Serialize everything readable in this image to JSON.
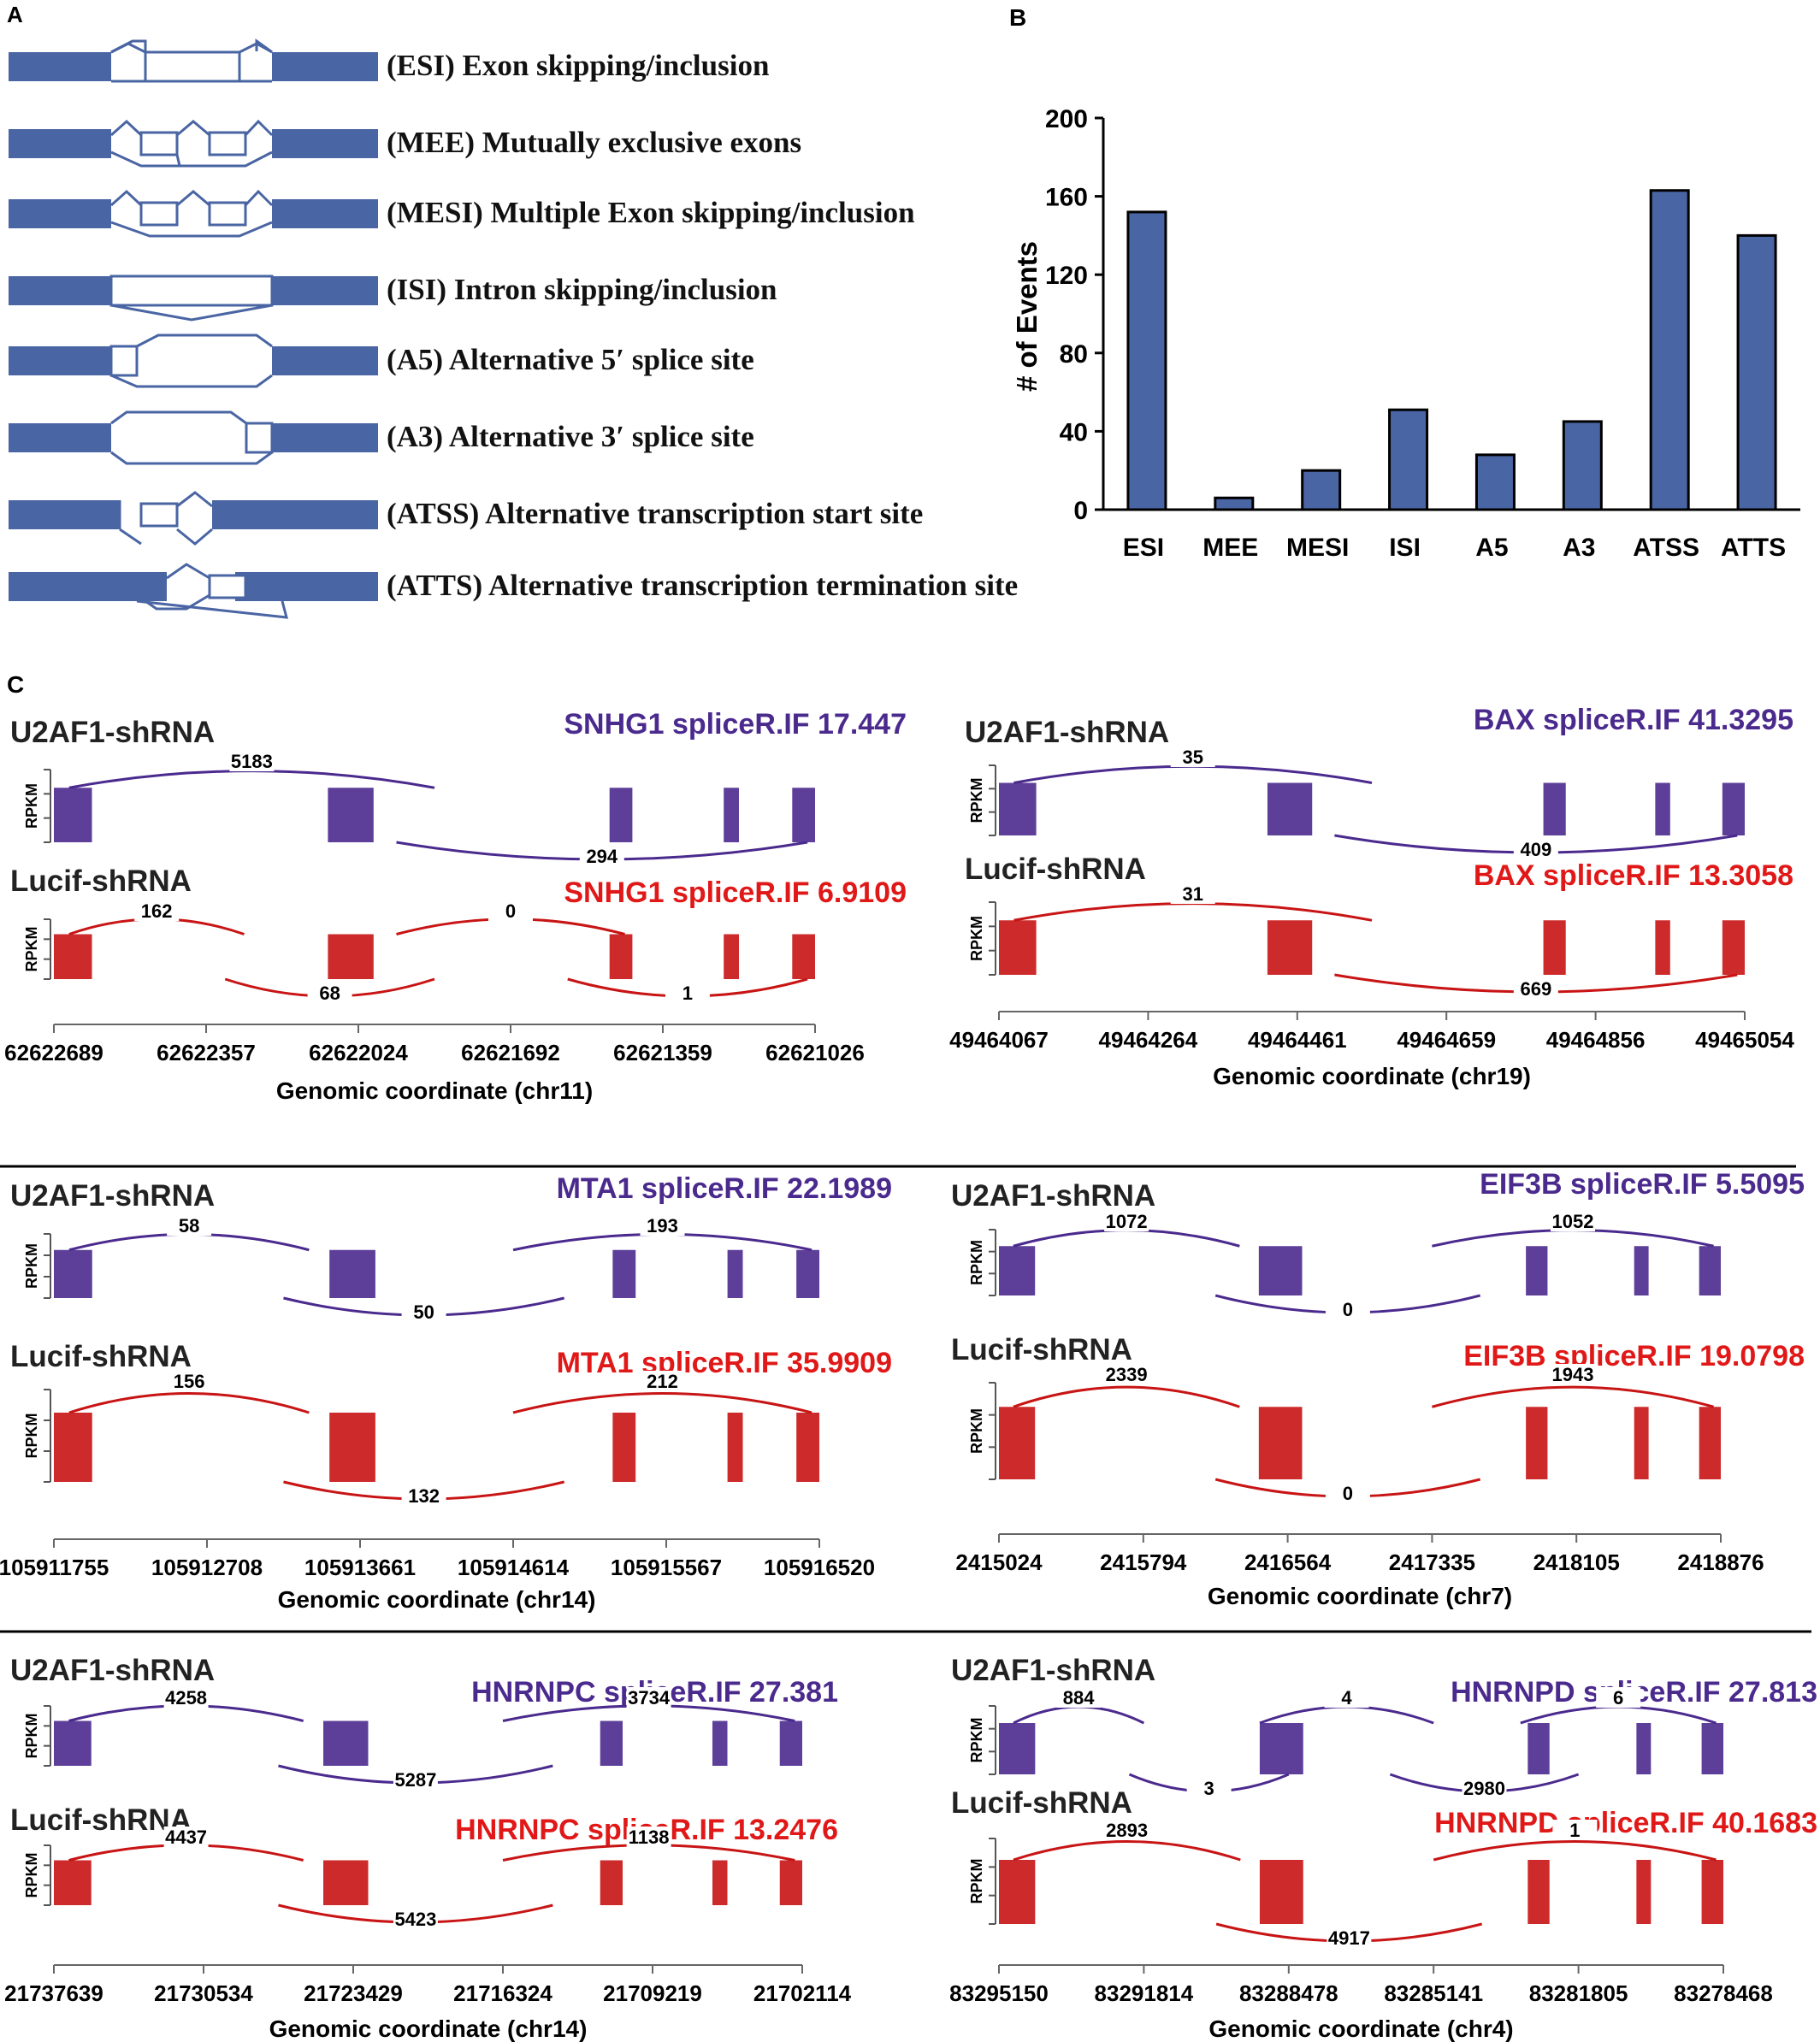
{
  "panel_labels": {
    "a": "A",
    "b": "B",
    "c": "C"
  },
  "colors": {
    "exon": "#4a65a3",
    "purple": "#4b2a8e",
    "red": "#e01818",
    "darkred": "#c81414",
    "bar": "#4a65a3"
  },
  "panel_a": {
    "events": [
      {
        "label": "(ESI) Exon skipping/inclusion",
        "icon": "esi-diagram-icon"
      },
      {
        "label": "(MEE) Mutually exclusive exons",
        "icon": "mee-diagram-icon"
      },
      {
        "label": "(MESI) Multiple Exon skipping/inclusion",
        "icon": "mesi-diagram-icon"
      },
      {
        "label": "(ISI) Intron skipping/inclusion",
        "icon": "isi-diagram-icon"
      },
      {
        "label": "(A5) Alternative 5′ splice site",
        "icon": "a5-diagram-icon"
      },
      {
        "label": "(A3) Alternative 3′ splice site",
        "icon": "a3-diagram-icon"
      },
      {
        "label": "(ATSS) Alternative transcription start site",
        "icon": "atss-diagram-icon"
      },
      {
        "label": "(ATTS) Alternative transcription termination site",
        "icon": "atts-diagram-icon"
      }
    ]
  },
  "chart_data": {
    "type": "bar",
    "categories": [
      "ESI",
      "MEE",
      "MESI",
      "ISI",
      "A5",
      "A3",
      "ATSS",
      "ATTS"
    ],
    "values": [
      152,
      6,
      20,
      51,
      28,
      45,
      163,
      140
    ],
    "ylabel": "# of Events",
    "xlabel": "",
    "title": "",
    "ylim": [
      0,
      200
    ],
    "yticks": [
      0,
      40,
      80,
      120,
      160,
      200
    ],
    "grid": false,
    "color": "#4a65a3"
  },
  "panel_c": {
    "rpkm_label": "RPKM",
    "genes": [
      {
        "gene": "SNHG1",
        "top": {
          "sample": "U2AF1-shRNA",
          "title": "SNHG1 spliceR.IF  17.447",
          "junctions": [
            "5183",
            "294"
          ]
        },
        "bottom": {
          "sample": "Lucif-shRNA",
          "title": "SNHG1 spliceR.IF  6.9109",
          "junctions": [
            "162",
            "68",
            "0",
            "1"
          ]
        },
        "ticks": [
          "62622689",
          "62622357",
          "62622024",
          "62621692",
          "62621359",
          "62621026"
        ],
        "axis_label": "Genomic  coordinate (chr11)"
      },
      {
        "gene": "BAX",
        "top": {
          "sample": "U2AF1-shRNA",
          "title": "BAX  spliceR.IF  41.3295",
          "junctions": [
            "35",
            "409"
          ]
        },
        "bottom": {
          "sample": "Lucif-shRNA",
          "title": "BAX  spliceR.IF  13.3058",
          "junctions": [
            "31",
            "669"
          ]
        },
        "ticks": [
          "49464067",
          "49464264",
          "49464461",
          "49464659",
          "49464856",
          "49465054"
        ],
        "axis_label": "Genomic  coordinate (chr19)"
      },
      {
        "gene": "MTA1",
        "top": {
          "sample": "U2AF1-shRNA",
          "title": "MTA1  spliceR.IF  22.1989",
          "junctions": [
            "58",
            "50",
            "193"
          ]
        },
        "bottom": {
          "sample": "Lucif-shRNA",
          "title": "MTA1 spliceR.IF 35.9909",
          "junctions": [
            "156",
            "132",
            "212"
          ]
        },
        "ticks": [
          "105911755",
          "105912708",
          "105913661",
          "105914614",
          "105915567",
          "105916520"
        ],
        "axis_label": "Genomic  coordinate (chr14)"
      },
      {
        "gene": "EIF3B",
        "top": {
          "sample": "U2AF1-shRNA",
          "title": "EIF3B  spliceR.IF  5.5095",
          "junctions": [
            "1072",
            "0",
            "1052"
          ]
        },
        "bottom": {
          "sample": "Lucif-shRNA",
          "title": "EIF3B  spliceR.IF  19.0798",
          "junctions": [
            "2339",
            "0",
            "1943"
          ]
        },
        "ticks": [
          "2415024",
          "2415794",
          "2416564",
          "2417335",
          "2418105",
          "2418876"
        ],
        "axis_label": "Genomic  coordinate (chr7)"
      },
      {
        "gene": "HNRNPC",
        "top": {
          "sample": "U2AF1-shRNA",
          "title": "HNRNPC spliceR.IF  27.381",
          "junctions": [
            "4258",
            "5287",
            "3734"
          ]
        },
        "bottom": {
          "sample": "Lucif-shRNA",
          "title": "HNRNPC  spliceR.IF  13.2476",
          "junctions": [
            "4437",
            "5423",
            "1138"
          ]
        },
        "ticks": [
          "21737639",
          "21730534",
          "21723429",
          "21716324",
          "21709219",
          "21702114"
        ],
        "axis_label": "Genomic  coordinate (chr14)"
      },
      {
        "gene": "HNRNPD",
        "top": {
          "sample": "U2AF1-shRNA",
          "title": "HNRNPD spliceR.IF  27.813",
          "junctions": [
            "884",
            "3",
            "4",
            "2980",
            "6"
          ]
        },
        "bottom": {
          "sample": "Lucif-shRNA",
          "title": "HNRNPD spliceR.IF  40.1683",
          "junctions": [
            "2893",
            "4917",
            "1"
          ]
        },
        "ticks": [
          "83295150",
          "83291814",
          "83288478",
          "83285141",
          "83281805",
          "83278468"
        ],
        "axis_label": "Genomic  coordinate (chr4)"
      }
    ]
  }
}
